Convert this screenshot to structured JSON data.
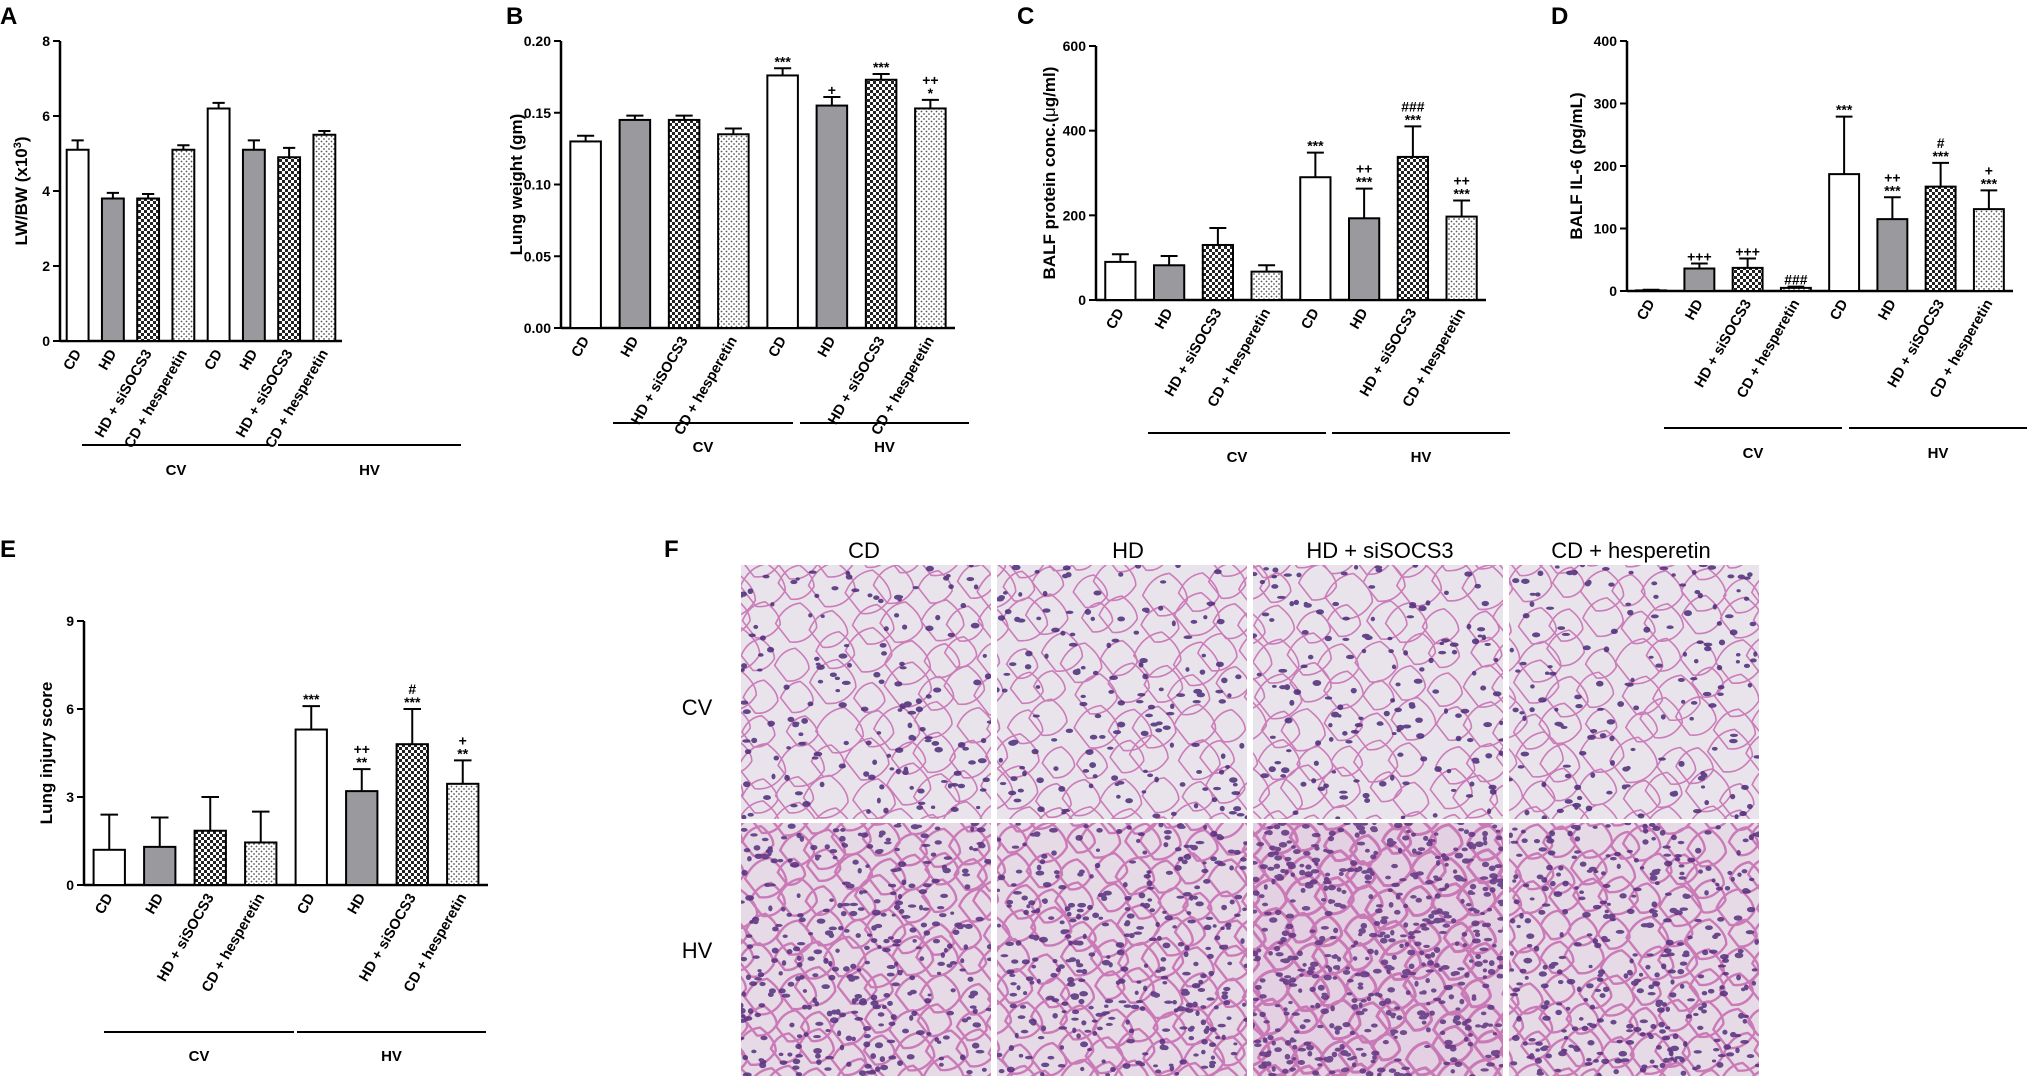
{
  "figure": {
    "histology": {
      "panel_label": "F",
      "columns": [
        "CD",
        "HD",
        "HD + siSOCS3",
        "CD + hesperetin"
      ],
      "rows": [
        "CV",
        "HV"
      ]
    }
  },
  "colors": {
    "hv_cd": "#ffffff",
    "hd": "#9a9a9e",
    "hd_sisocs3": "checkered-dark",
    "cd_hesperetin": "dotted-light",
    "cv_cd": "#ffffff",
    "histology_background": "#e9e4ec",
    "histology_nuclei": "#4a2a78",
    "histology_stroma": "#c66ab0"
  },
  "chart_data": [
    {
      "panel_label": "A",
      "type": "bar",
      "ylabel": "LW/BW (x10",
      "ylabel_sup": "3",
      "ylabel_end": ")",
      "ylim": [
        0,
        8
      ],
      "yticks": [
        "0",
        "2",
        "4",
        "6",
        "8"
      ],
      "categories": [
        "CD",
        "HD",
        "HD + siSOCS3",
        "CD + hesperetin",
        "CD",
        "HD",
        "HD + siSOCS3",
        "CD + hesperetin"
      ],
      "groups": [
        "CV",
        "HV"
      ],
      "values": [
        5.1,
        3.8,
        3.8,
        5.1,
        6.2,
        5.1,
        4.9,
        5.5
      ],
      "errors": [
        0.25,
        0.15,
        0.12,
        0.12,
        0.15,
        0.25,
        0.25,
        0.1
      ],
      "annotations": [
        [],
        [],
        [],
        [],
        [],
        [],
        [],
        []
      ]
    },
    {
      "panel_label": "B",
      "type": "bar",
      "ylabel": "Lung weight (gm)",
      "ylim": [
        0,
        0.2
      ],
      "yticks": [
        "0.00",
        "0.05",
        "0.10",
        "0.15",
        "0.20"
      ],
      "categories": [
        "CD",
        "HD",
        "HD + siSOCS3",
        "CD + hesperetin",
        "CD",
        "HD",
        "HD + siSOCS3",
        "CD + hesperetin"
      ],
      "groups": [
        "CV",
        "HV"
      ],
      "values": [
        0.13,
        0.145,
        0.145,
        0.135,
        0.176,
        0.155,
        0.173,
        0.153
      ],
      "errors": [
        0.004,
        0.003,
        0.003,
        0.004,
        0.005,
        0.006,
        0.004,
        0.006
      ],
      "annotations": [
        [],
        [],
        [],
        [],
        [
          "***"
        ],
        [
          "+"
        ],
        [
          "***"
        ],
        [
          "++",
          "*"
        ]
      ]
    },
    {
      "panel_label": "C",
      "type": "bar",
      "ylabel": "BALF protein conc.(",
      "ylabel_mu": "μ",
      "ylabel_end": "g/ml)",
      "ylim": [
        0,
        600
      ],
      "yticks": [
        "0",
        "200",
        "400",
        "600"
      ],
      "categories": [
        "CD",
        "HD",
        "HD + siSOCS3",
        "CD + hesperetin",
        "CD",
        "HD",
        "HD + siSOCS3",
        "CD + hesperetin"
      ],
      "groups": [
        "CV",
        "HV"
      ],
      "values": [
        90,
        82,
        130,
        67,
        290,
        193,
        338,
        197
      ],
      "errors": [
        18,
        22,
        40,
        15,
        58,
        70,
        72,
        38
      ],
      "annotations": [
        [],
        [],
        [],
        [],
        [
          "***"
        ],
        [
          "++",
          "***"
        ],
        [
          "###",
          "***"
        ],
        [
          "++",
          "***"
        ]
      ]
    },
    {
      "panel_label": "D",
      "type": "bar",
      "ylabel": "BALF IL-6 (pg/mL)",
      "ylim": [
        0,
        400
      ],
      "yticks": [
        "0",
        "100",
        "200",
        "300",
        "400"
      ],
      "categories": [
        "CD",
        "HD",
        "HD + siSOCS3",
        "CD + hesperetin",
        "CD",
        "HD",
        "HD + siSOCS3",
        "CD + hesperetin"
      ],
      "groups": [
        "CV",
        "HV"
      ],
      "values": [
        1,
        36,
        37,
        5,
        187,
        115,
        167,
        131
      ],
      "errors": [
        1,
        8,
        15,
        2,
        92,
        35,
        38,
        30
      ],
      "annotations": [
        [],
        [
          "+++"
        ],
        [
          "+++"
        ],
        [
          "###"
        ],
        [
          "***"
        ],
        [
          "++",
          "***"
        ],
        [
          "#",
          "***"
        ],
        [
          "+",
          "***"
        ]
      ]
    },
    {
      "panel_label": "E",
      "type": "bar",
      "ylabel": "Lung injury score",
      "ylim": [
        0,
        9
      ],
      "yticks": [
        "0",
        "3",
        "6",
        "9"
      ],
      "categories": [
        "CD",
        "HD",
        "HD + siSOCS3",
        "CD + hesperetin",
        "CD",
        "HD",
        "HD + siSOCS3",
        "CD + hesperetin"
      ],
      "groups": [
        "CV",
        "HV"
      ],
      "values": [
        1.2,
        1.3,
        1.85,
        1.45,
        5.3,
        3.2,
        4.8,
        3.45
      ],
      "errors": [
        1.2,
        1.0,
        1.15,
        1.05,
        0.8,
        0.75,
        1.2,
        0.8
      ],
      "annotations": [
        [],
        [],
        [],
        [],
        [
          "***"
        ],
        [
          "++",
          "**"
        ],
        [
          "#",
          "***"
        ],
        [
          "+",
          "**"
        ]
      ]
    }
  ]
}
